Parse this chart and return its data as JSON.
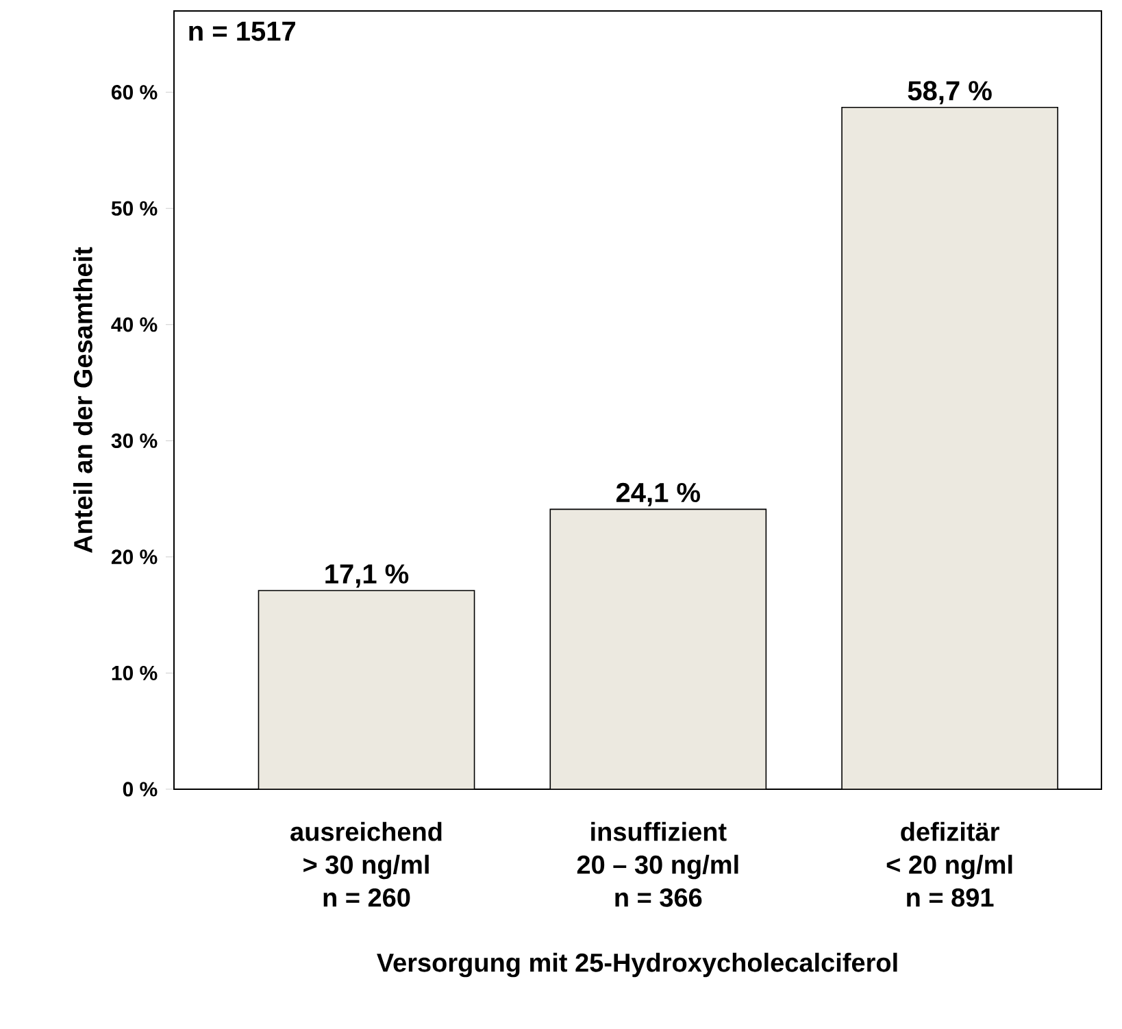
{
  "chart_data": {
    "type": "bar",
    "categories": [
      "ausreichend\n> 30 ng/ml\nn = 260",
      "insuffizient\n20 – 30 ng/ml\nn = 366",
      "defizitär\n< 20 ng/ml\nn = 891"
    ],
    "values": [
      17.1,
      24.1,
      58.7
    ],
    "value_labels": [
      "17,1 %",
      "24,1 %",
      "58,7 %"
    ],
    "color": "#ece9e0",
    "xlabel": "Versorgung mit 25-Hydroxycholecalciferol",
    "ylabel": "Anteil an der Gesamtheit",
    "annotations": [
      "n = 1517"
    ],
    "ylim": [
      0,
      67
    ],
    "yticks": [
      {
        "value": 0,
        "label": "0 %"
      },
      {
        "value": 10,
        "label": "10 %"
      },
      {
        "value": 20,
        "label": "20 %"
      },
      {
        "value": 30,
        "label": "30 %"
      },
      {
        "value": 40,
        "label": "40 %"
      },
      {
        "value": 50,
        "label": "50 %"
      },
      {
        "value": 60,
        "label": "60 %"
      }
    ]
  }
}
